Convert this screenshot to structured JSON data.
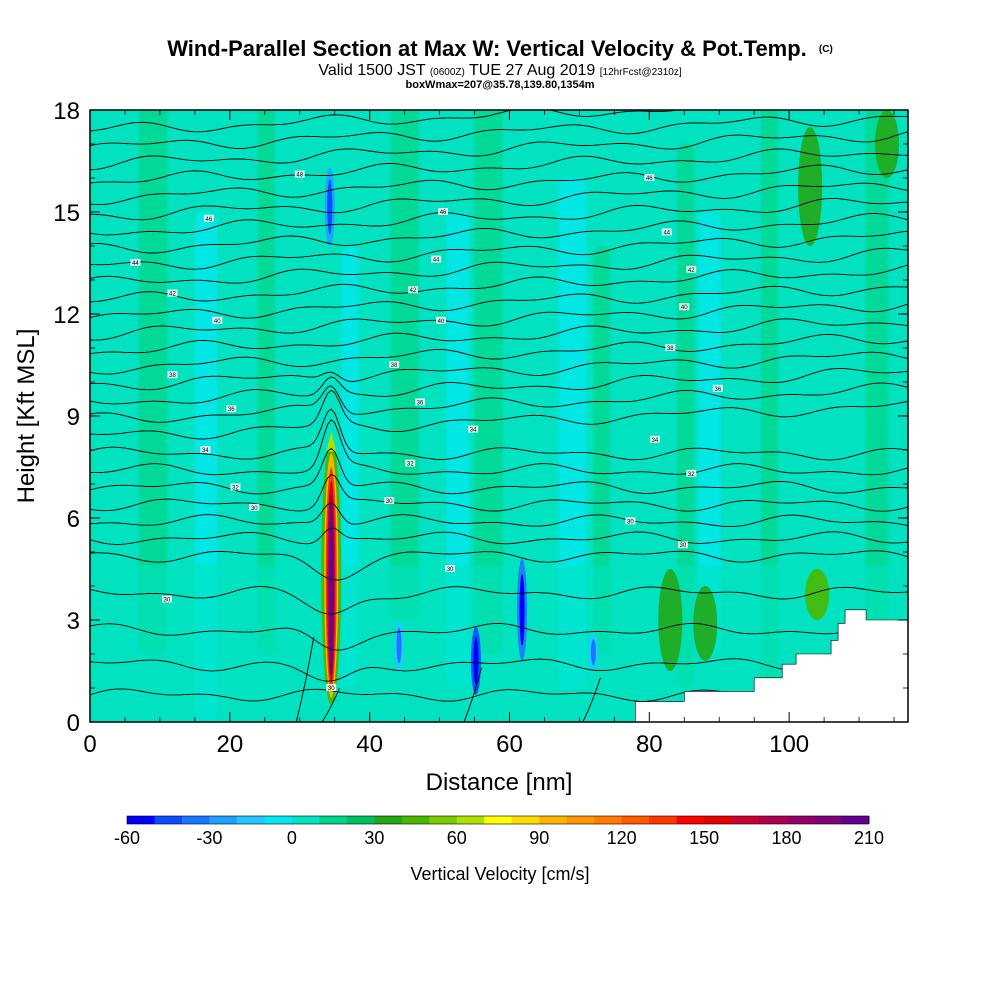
{
  "header": {
    "title": "Wind-Parallel Section at Max W: Vertical Velocity & Pot.Temp.",
    "copyright": "(C)",
    "valid_prefix": "Valid 1500 JST",
    "valid_utc": "(0600Z)",
    "valid_date": "TUE 27 Aug 2019",
    "forecast": "[12hrFcst@2310z]",
    "box_info": "boxWmax=207@35.78,139.80,1354m"
  },
  "chart_data": {
    "type": "heatmap",
    "xlabel": "Distance [nm]",
    "ylabel": "Height [Kft MSL]",
    "xlim": [
      0,
      117
    ],
    "ylim": [
      0,
      18
    ],
    "x_ticks": [
      "0",
      "20",
      "40",
      "60",
      "80",
      "100"
    ],
    "y_ticks": [
      "0",
      "3",
      "6",
      "9",
      "12",
      "15",
      "18"
    ],
    "x_tick_values": [
      0,
      20,
      40,
      60,
      80,
      100
    ],
    "y_tick_values": [
      0,
      3,
      6,
      9,
      12,
      15,
      18
    ],
    "colorbar": {
      "label": "Vertical Velocity [cm/s]",
      "ticks": [
        "-60",
        "-30",
        "0",
        "30",
        "60",
        "90",
        "120",
        "150",
        "180",
        "210"
      ],
      "tick_values": [
        -60,
        -30,
        0,
        30,
        60,
        90,
        120,
        150,
        180,
        210
      ],
      "levels": [
        -60,
        -50,
        -40,
        -30,
        -20,
        -10,
        0,
        10,
        20,
        30,
        40,
        50,
        60,
        70,
        80,
        90,
        100,
        110,
        120,
        130,
        140,
        150,
        160,
        170,
        180,
        190,
        200,
        210
      ],
      "colors": [
        "#0000ff",
        "#0a4cff",
        "#1a78ff",
        "#1ea0ff",
        "#22c6ff",
        "#00e8f0",
        "#00e2c0",
        "#00d68a",
        "#00c060",
        "#22a818",
        "#48b800",
        "#78cc00",
        "#b0e000",
        "#ffff00",
        "#ffdc00",
        "#ffb400",
        "#ff9600",
        "#ff7a00",
        "#ff5a00",
        "#ff3800",
        "#ff0000",
        "#e60000",
        "#cc0030",
        "#b00050",
        "#960064",
        "#800078",
        "#640090"
      ]
    },
    "background_value_cms": 0,
    "features": [
      {
        "name": "updraft core",
        "x": 34.5,
        "y_bottom": 0.5,
        "y_top": 8.3,
        "max_w": 207
      },
      {
        "name": "downdraft",
        "x": 34.3,
        "y_bottom": 14.0,
        "y_top": 16.3,
        "w": -30
      },
      {
        "name": "downdraft",
        "x": 55.2,
        "y_bottom": 0.8,
        "y_top": 2.8,
        "w": -50
      },
      {
        "name": "downdraft",
        "x": 61.8,
        "y_bottom": 1.8,
        "y_top": 4.8,
        "w": -40
      },
      {
        "name": "downdraft",
        "x": 44.2,
        "y_bottom": 1.5,
        "y_top": 3.0,
        "w": -20
      },
      {
        "name": "downdraft",
        "x": 72.0,
        "y_bottom": 1.5,
        "y_top": 2.6,
        "w": -20
      },
      {
        "name": "updraft",
        "x": 83.0,
        "y_bottom": 1.5,
        "y_top": 4.5,
        "w": 30
      },
      {
        "name": "updraft",
        "x": 88.0,
        "y_bottom": 1.8,
        "y_top": 4.0,
        "w": 30
      },
      {
        "name": "updraft",
        "x": 104.0,
        "y_bottom": 3.0,
        "y_top": 4.5,
        "w": 40
      },
      {
        "name": "updraft",
        "x": 103.0,
        "y_bottom": 14.0,
        "y_top": 17.5,
        "w": 30
      },
      {
        "name": "updraft",
        "x": 114.0,
        "y_bottom": 16.0,
        "y_top": 18.0,
        "w": 30
      }
    ],
    "theta_contours": {
      "label_values": [
        "30",
        "32",
        "34",
        "36",
        "38",
        "40",
        "42",
        "44",
        "46",
        "48"
      ],
      "levels_kft": [
        0.8,
        1.7,
        2.7,
        3.8,
        4.9,
        5.4,
        5.9,
        6.4,
        6.9,
        7.4,
        7.9,
        8.4,
        8.9,
        9.4,
        9.9,
        10.4,
        10.9,
        11.4,
        11.9,
        12.4,
        12.9,
        13.4,
        13.9,
        14.4,
        14.9,
        15.4,
        15.9,
        16.4,
        16.9,
        17.4
      ],
      "labels": [
        {
          "text": "30",
          "x": 34.5,
          "y": 1.0
        },
        {
          "text": "30",
          "x": 11.0,
          "y": 3.6
        },
        {
          "text": "30",
          "x": 51.5,
          "y": 4.5
        },
        {
          "text": "30",
          "x": 23.5,
          "y": 6.3
        },
        {
          "text": "30",
          "x": 42.8,
          "y": 6.5
        },
        {
          "text": "30",
          "x": 77.3,
          "y": 5.9
        },
        {
          "text": "30",
          "x": 84.8,
          "y": 5.2
        },
        {
          "text": "32",
          "x": 20.8,
          "y": 6.9
        },
        {
          "text": "32",
          "x": 45.8,
          "y": 7.6
        },
        {
          "text": "32",
          "x": 86.0,
          "y": 7.3
        },
        {
          "text": "34",
          "x": 16.5,
          "y": 8.0
        },
        {
          "text": "34",
          "x": 54.8,
          "y": 8.6
        },
        {
          "text": "34",
          "x": 80.8,
          "y": 8.3
        },
        {
          "text": "36",
          "x": 20.2,
          "y": 9.2
        },
        {
          "text": "36",
          "x": 47.2,
          "y": 9.4
        },
        {
          "text": "36",
          "x": 89.8,
          "y": 9.8
        },
        {
          "text": "38",
          "x": 11.8,
          "y": 10.2
        },
        {
          "text": "38",
          "x": 43.5,
          "y": 10.5
        },
        {
          "text": "38",
          "x": 83.0,
          "y": 11.0
        },
        {
          "text": "40",
          "x": 18.2,
          "y": 11.8
        },
        {
          "text": "40",
          "x": 50.2,
          "y": 11.8
        },
        {
          "text": "40",
          "x": 85.0,
          "y": 12.2
        },
        {
          "text": "42",
          "x": 11.8,
          "y": 12.6
        },
        {
          "text": "42",
          "x": 46.2,
          "y": 12.7
        },
        {
          "text": "42",
          "x": 86.0,
          "y": 13.3
        },
        {
          "text": "44",
          "x": 6.5,
          "y": 13.5
        },
        {
          "text": "44",
          "x": 49.5,
          "y": 13.6
        },
        {
          "text": "44",
          "x": 82.5,
          "y": 14.4
        },
        {
          "text": "46",
          "x": 17.0,
          "y": 14.8
        },
        {
          "text": "46",
          "x": 50.5,
          "y": 15.0
        },
        {
          "text": "46",
          "x": 80.0,
          "y": 16.0
        },
        {
          "text": "48",
          "x": 30.0,
          "y": 16.1
        }
      ]
    },
    "terrain": [
      [
        78,
        0
      ],
      [
        78,
        0.6
      ],
      [
        85,
        0.6
      ],
      [
        85,
        0.9
      ],
      [
        95,
        0.9
      ],
      [
        95,
        1.3
      ],
      [
        99,
        1.3
      ],
      [
        99,
        1.7
      ],
      [
        101,
        1.7
      ],
      [
        101,
        2.0
      ],
      [
        106,
        2.0
      ],
      [
        106,
        2.4
      ],
      [
        107,
        2.4
      ],
      [
        107,
        2.9
      ],
      [
        108,
        2.9
      ],
      [
        108,
        3.3
      ],
      [
        111,
        3.3
      ],
      [
        111,
        3.0
      ],
      [
        117,
        3.0
      ],
      [
        117,
        0
      ]
    ]
  }
}
